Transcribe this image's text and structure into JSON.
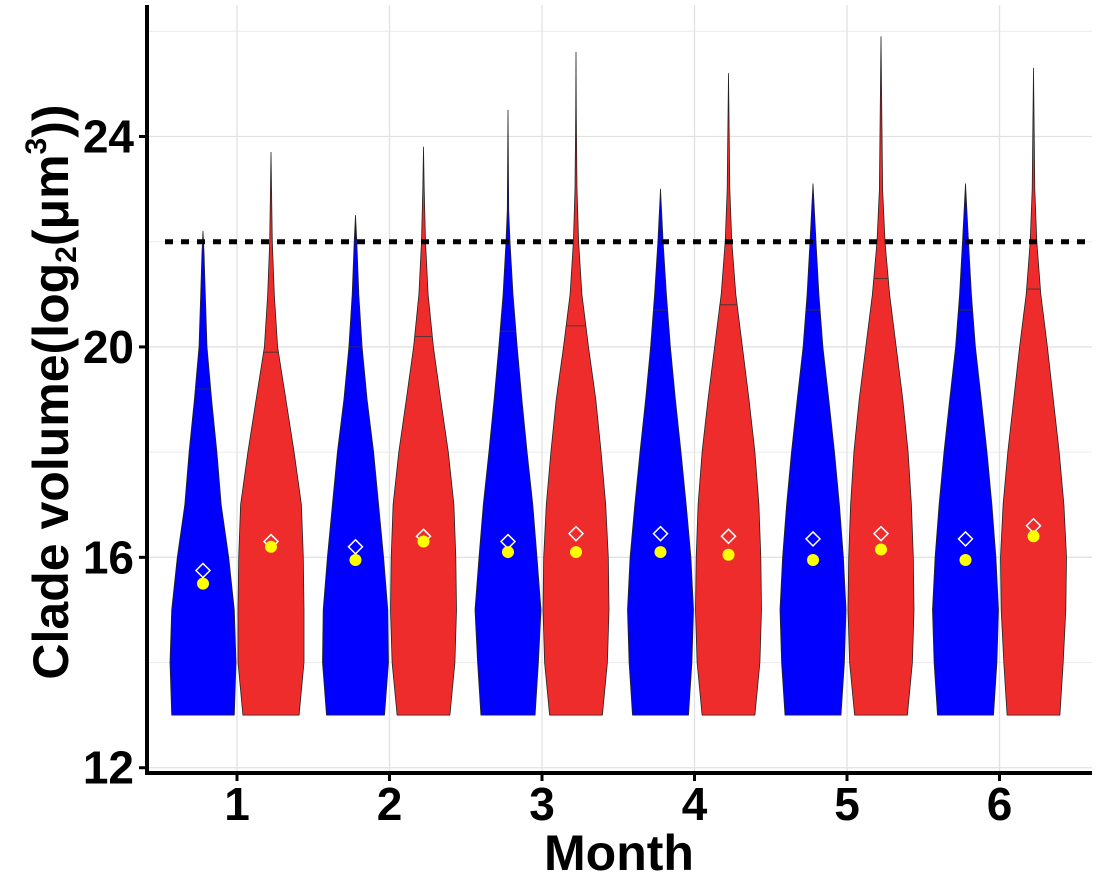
{
  "chart_data": {
    "type": "violin",
    "xlabel": "Month",
    "ylabel": {
      "prefix": "Clade volume(log",
      "sub": "2",
      "mid": "(μm",
      "sup": "3",
      "suffix": "))"
    },
    "categories": [
      "1",
      "2",
      "3",
      "4",
      "5",
      "6"
    ],
    "ylim": [
      11.9,
      26.5
    ],
    "yticks": [
      12,
      16,
      20,
      24
    ],
    "reference_line": 22,
    "grid": true,
    "colors": {
      "blue": "#0000ff",
      "red": "#ee2c2c",
      "mean_marker": "#ffff00",
      "diamond": "#ffffff"
    },
    "series": [
      {
        "group": "blue",
        "violins": [
          {
            "month": "1",
            "min": 13.0,
            "max": 22.2,
            "q3": 19.2,
            "mean": 15.5,
            "median": 15.75,
            "profile": [
              [
                13.0,
                0.95
              ],
              [
                14.0,
                1.0
              ],
              [
                15.0,
                0.95
              ],
              [
                16.0,
                0.78
              ],
              [
                17.0,
                0.55
              ],
              [
                18.0,
                0.42
              ],
              [
                19.0,
                0.26
              ],
              [
                20.0,
                0.12
              ],
              [
                21.0,
                0.07
              ],
              [
                21.8,
                0.03
              ],
              [
                22.2,
                0.0
              ]
            ]
          },
          {
            "month": "2",
            "min": 13.0,
            "max": 22.5,
            "q3": 20.0,
            "mean": 15.95,
            "median": 16.2,
            "profile": [
              [
                13.0,
                0.88
              ],
              [
                14.0,
                1.0
              ],
              [
                15.0,
                0.98
              ],
              [
                16.0,
                0.85
              ],
              [
                17.0,
                0.7
              ],
              [
                18.0,
                0.55
              ],
              [
                19.0,
                0.35
              ],
              [
                20.0,
                0.2
              ],
              [
                21.0,
                0.1
              ],
              [
                22.0,
                0.04
              ],
              [
                22.5,
                0.0
              ]
            ]
          },
          {
            "month": "3",
            "min": 13.0,
            "max": 24.5,
            "q3": 20.3,
            "mean": 16.1,
            "median": 16.3,
            "profile": [
              [
                13.0,
                0.82
              ],
              [
                14.0,
                0.92
              ],
              [
                15.0,
                1.0
              ],
              [
                16.0,
                0.88
              ],
              [
                17.0,
                0.75
              ],
              [
                18.0,
                0.58
              ],
              [
                19.0,
                0.42
              ],
              [
                20.0,
                0.28
              ],
              [
                21.0,
                0.15
              ],
              [
                22.0,
                0.06
              ],
              [
                22.6,
                0.02
              ],
              [
                24.5,
                0.0
              ]
            ]
          },
          {
            "month": "4",
            "min": 13.0,
            "max": 23.0,
            "q3": 20.7,
            "mean": 16.1,
            "median": 16.45,
            "profile": [
              [
                13.0,
                0.85
              ],
              [
                14.0,
                0.95
              ],
              [
                15.0,
                1.0
              ],
              [
                16.0,
                0.92
              ],
              [
                17.0,
                0.78
              ],
              [
                18.0,
                0.62
              ],
              [
                19.0,
                0.45
              ],
              [
                20.0,
                0.3
              ],
              [
                21.0,
                0.18
              ],
              [
                22.0,
                0.08
              ],
              [
                23.0,
                0.0
              ]
            ]
          },
          {
            "month": "5",
            "min": 13.0,
            "max": 23.1,
            "q3": 20.7,
            "mean": 15.95,
            "median": 16.35,
            "profile": [
              [
                13.0,
                0.85
              ],
              [
                14.0,
                0.95
              ],
              [
                15.0,
                1.0
              ],
              [
                16.0,
                0.92
              ],
              [
                17.0,
                0.8
              ],
              [
                18.0,
                0.65
              ],
              [
                19.0,
                0.48
              ],
              [
                20.0,
                0.3
              ],
              [
                21.0,
                0.18
              ],
              [
                22.0,
                0.09
              ],
              [
                23.1,
                0.0
              ]
            ]
          },
          {
            "month": "6",
            "min": 13.0,
            "max": 23.1,
            "q3": 20.7,
            "mean": 15.95,
            "median": 16.35,
            "profile": [
              [
                13.0,
                0.85
              ],
              [
                14.0,
                0.95
              ],
              [
                15.0,
                1.0
              ],
              [
                16.0,
                0.92
              ],
              [
                17.0,
                0.8
              ],
              [
                18.0,
                0.65
              ],
              [
                19.0,
                0.48
              ],
              [
                20.0,
                0.3
              ],
              [
                21.0,
                0.18
              ],
              [
                22.0,
                0.09
              ],
              [
                23.1,
                0.0
              ]
            ]
          }
        ]
      },
      {
        "group": "red",
        "violins": [
          {
            "month": "1",
            "min": 13.0,
            "max": 23.7,
            "q3": 19.9,
            "mean": 16.2,
            "median": 16.3,
            "profile": [
              [
                13.0,
                0.85
              ],
              [
                14.0,
                1.0
              ],
              [
                15.0,
                1.0
              ],
              [
                16.0,
                0.98
              ],
              [
                17.0,
                0.92
              ],
              [
                18.0,
                0.7
              ],
              [
                19.0,
                0.45
              ],
              [
                20.0,
                0.2
              ],
              [
                21.0,
                0.1
              ],
              [
                22.0,
                0.04
              ],
              [
                23.7,
                0.0
              ]
            ]
          },
          {
            "month": "2",
            "min": 13.0,
            "max": 23.8,
            "q3": 20.2,
            "mean": 16.3,
            "median": 16.4,
            "profile": [
              [
                13.0,
                0.8
              ],
              [
                14.0,
                0.95
              ],
              [
                15.0,
                1.0
              ],
              [
                16.0,
                0.98
              ],
              [
                17.0,
                0.92
              ],
              [
                18.0,
                0.75
              ],
              [
                19.0,
                0.52
              ],
              [
                20.0,
                0.3
              ],
              [
                21.0,
                0.14
              ],
              [
                22.0,
                0.06
              ],
              [
                23.0,
                0.02
              ],
              [
                23.8,
                0.0
              ]
            ]
          },
          {
            "month": "3",
            "min": 13.0,
            "max": 25.6,
            "q3": 20.4,
            "mean": 16.1,
            "median": 16.45,
            "profile": [
              [
                13.0,
                0.8
              ],
              [
                14.0,
                0.95
              ],
              [
                15.0,
                1.0
              ],
              [
                16.0,
                0.98
              ],
              [
                17.0,
                0.9
              ],
              [
                18.0,
                0.76
              ],
              [
                19.0,
                0.6
              ],
              [
                20.0,
                0.38
              ],
              [
                21.0,
                0.18
              ],
              [
                22.0,
                0.08
              ],
              [
                23.0,
                0.03
              ],
              [
                24.4,
                0.01
              ],
              [
                25.6,
                0.0
              ]
            ]
          },
          {
            "month": "4",
            "min": 13.0,
            "max": 25.2,
            "q3": 20.8,
            "mean": 16.05,
            "median": 16.4,
            "profile": [
              [
                13.0,
                0.8
              ],
              [
                14.0,
                0.95
              ],
              [
                15.0,
                1.0
              ],
              [
                16.0,
                0.98
              ],
              [
                17.0,
                0.92
              ],
              [
                18.0,
                0.8
              ],
              [
                19.0,
                0.62
              ],
              [
                20.0,
                0.42
              ],
              [
                21.0,
                0.22
              ],
              [
                22.0,
                0.1
              ],
              [
                23.0,
                0.04
              ],
              [
                25.2,
                0.0
              ]
            ]
          },
          {
            "month": "5",
            "min": 13.0,
            "max": 25.9,
            "q3": 21.3,
            "mean": 16.15,
            "median": 16.45,
            "profile": [
              [
                13.0,
                0.8
              ],
              [
                14.0,
                0.95
              ],
              [
                15.0,
                1.0
              ],
              [
                16.0,
                0.98
              ],
              [
                17.0,
                0.92
              ],
              [
                18.0,
                0.82
              ],
              [
                19.0,
                0.66
              ],
              [
                20.0,
                0.46
              ],
              [
                21.0,
                0.26
              ],
              [
                22.0,
                0.12
              ],
              [
                23.0,
                0.05
              ],
              [
                25.9,
                0.0
              ]
            ]
          },
          {
            "month": "6",
            "min": 13.0,
            "max": 25.3,
            "q3": 21.1,
            "mean": 16.4,
            "median": 16.6,
            "profile": [
              [
                13.0,
                0.8
              ],
              [
                14.0,
                0.9
              ],
              [
                15.0,
                0.98
              ],
              [
                16.0,
                1.0
              ],
              [
                17.0,
                0.92
              ],
              [
                18.0,
                0.78
              ],
              [
                19.0,
                0.6
              ],
              [
                20.0,
                0.42
              ],
              [
                21.0,
                0.22
              ],
              [
                22.0,
                0.1
              ],
              [
                23.0,
                0.04
              ],
              [
                25.3,
                0.0
              ]
            ]
          }
        ]
      }
    ]
  }
}
